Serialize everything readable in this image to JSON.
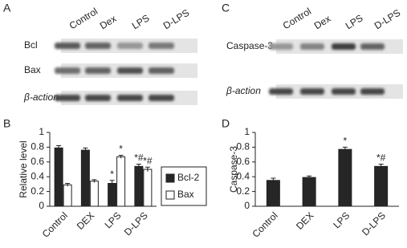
{
  "panels": {
    "letters": [
      "A",
      "B",
      "C",
      "D"
    ],
    "blot_a": {
      "lanes": [
        "Control",
        "Dex",
        "LPS",
        "D-LPS"
      ],
      "rows": [
        "Bcl",
        "Bax",
        "β-action"
      ]
    },
    "blot_c": {
      "lanes": [
        "Control",
        "Dex",
        "LPS",
        "D-LPS"
      ],
      "rows": [
        "Caspase-3",
        "β-action"
      ]
    }
  },
  "chart_data": [
    {
      "type": "bar",
      "y_label": "Relative level",
      "categories": [
        "Control",
        "DEX",
        "LPS",
        "D-LPS"
      ],
      "series": [
        {
          "name": "Bcl-2",
          "color": "#262626",
          "values": [
            0.79,
            0.76,
            0.31,
            0.54
          ],
          "errors": [
            0.03,
            0.03,
            0.04,
            0.03
          ],
          "annotations": [
            null,
            null,
            "*",
            "*#"
          ]
        },
        {
          "name": "Bax",
          "color": "#ffffff",
          "values": [
            0.29,
            0.34,
            0.67,
            0.5
          ],
          "errors": [
            0.02,
            0.02,
            0.02,
            0.03
          ],
          "annotations": [
            null,
            null,
            "*",
            "*#"
          ]
        }
      ],
      "ylim": [
        0,
        1
      ],
      "yticks": [
        0,
        0.2,
        0.4,
        0.6,
        0.8,
        1
      ],
      "legend": "right"
    },
    {
      "type": "bar",
      "y_label": "Caspase-3",
      "categories": [
        "Control",
        "DEX",
        "LPS",
        "D-LPS"
      ],
      "values": [
        0.35,
        0.39,
        0.77,
        0.54
      ],
      "errors": [
        0.03,
        0.02,
        0.03,
        0.03
      ],
      "annotations": [
        null,
        null,
        "*",
        "*#"
      ],
      "color": "#262626",
      "ylim": [
        0,
        1
      ],
      "yticks": [
        0,
        0.2,
        0.4,
        0.6,
        0.8,
        1
      ]
    }
  ]
}
